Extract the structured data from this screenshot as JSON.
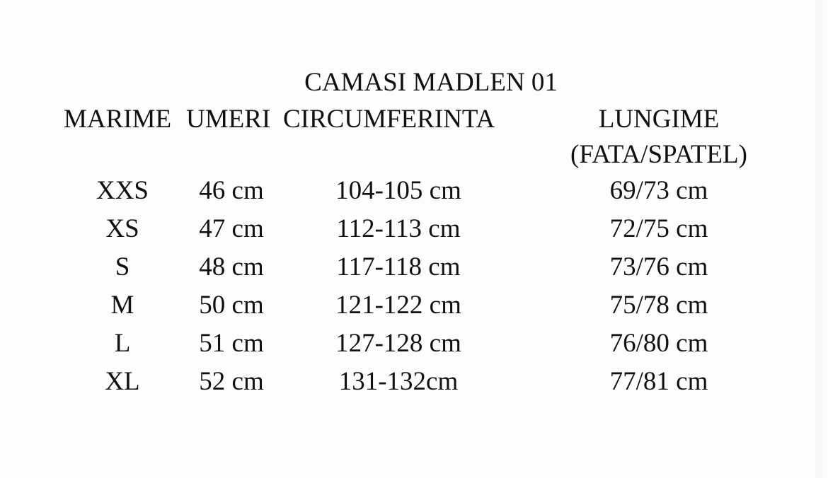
{
  "title": "CAMASI MADLEN 01",
  "headers": {
    "size": "MARIME",
    "shoulders": "UMERI",
    "circumference": "CIRCUMFERINTA",
    "length": "LUNGIME",
    "length_sub": "(FATA/SPATEL)"
  },
  "rows": [
    {
      "size": "XXS",
      "shoulders": "46 cm",
      "circumference": "104-105 cm",
      "length": "69/73 cm"
    },
    {
      "size": "XS",
      "shoulders": "47 cm",
      "circumference": "112-113 cm",
      "length": "72/75 cm"
    },
    {
      "size": "S",
      "shoulders": "48 cm",
      "circumference": "117-118 cm",
      "length": "73/76 cm"
    },
    {
      "size": "M",
      "shoulders": "50 cm",
      "circumference": "121-122 cm",
      "length": "75/78 cm"
    },
    {
      "size": "L",
      "shoulders": "51 cm",
      "circumference": "127-128 cm",
      "length": "76/80 cm"
    },
    {
      "size": "XL",
      "shoulders": "52 cm",
      "circumference": "131-132cm",
      "length": "77/81 cm"
    }
  ]
}
